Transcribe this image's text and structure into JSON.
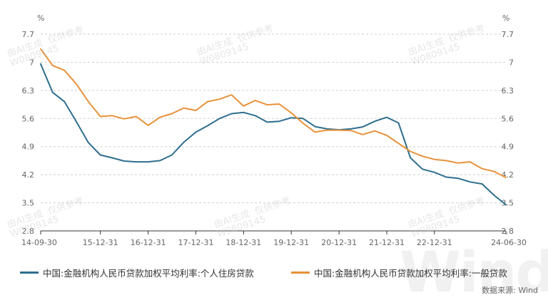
{
  "chart_data": {
    "type": "line",
    "y_unit_left": "%",
    "y_unit_right": "%",
    "ylim": [
      2.8,
      7.7
    ],
    "yticks": [
      "7.7",
      "7",
      "6.3",
      "5.6",
      "4.9",
      "4.2",
      "3.5",
      "2.8"
    ],
    "ytick_values": [
      7.7,
      7.0,
      6.3,
      5.6,
      4.9,
      4.2,
      3.5,
      2.8
    ],
    "xticks": [
      "14-09-30",
      "15-12-31",
      "16-12-31",
      "17-12-31",
      "18-12-31",
      "19-12-31",
      "20-12-31",
      "21-12-31",
      "22-12-31",
      "24-06-30"
    ],
    "grid": "horizontal-dashed",
    "legend_position": "bottom",
    "series": [
      {
        "name": "中国:金融机构人民币贷款加权平均利率:个人住房贷款",
        "color": "#2e6e8e",
        "x": [
          "14-09-30",
          "14-12-31",
          "15-03-31",
          "15-06-30",
          "15-09-30",
          "15-12-31",
          "16-03-31",
          "16-06-30",
          "16-09-30",
          "16-12-31",
          "17-03-31",
          "17-06-30",
          "17-09-30",
          "17-12-31",
          "18-03-31",
          "18-06-30",
          "18-09-30",
          "18-12-31",
          "19-03-31",
          "19-06-30",
          "19-09-30",
          "19-12-31",
          "20-03-31",
          "20-06-30",
          "20-09-30",
          "20-12-31",
          "21-03-31",
          "21-06-30",
          "21-09-30",
          "21-12-31",
          "22-03-31",
          "22-06-30",
          "22-09-30",
          "22-12-31",
          "23-03-31",
          "23-06-30",
          "23-09-30",
          "23-12-31",
          "24-03-31",
          "24-06-30"
        ],
        "values": [
          6.96,
          6.25,
          6.02,
          5.52,
          5.0,
          4.69,
          4.62,
          4.54,
          4.52,
          4.52,
          4.55,
          4.69,
          5.01,
          5.26,
          5.42,
          5.6,
          5.72,
          5.75,
          5.67,
          5.51,
          5.53,
          5.62,
          5.6,
          5.4,
          5.34,
          5.32,
          5.34,
          5.39,
          5.53,
          5.63,
          5.49,
          4.62,
          4.34,
          4.26,
          4.14,
          4.11,
          4.02,
          3.97,
          3.69,
          3.45
        ]
      },
      {
        "name": "中国:金融机构人民币贷款加权平均利率:一般贷款",
        "color": "#e8923a",
        "x": [
          "14-09-30",
          "14-12-31",
          "15-03-31",
          "15-06-30",
          "15-09-30",
          "15-12-31",
          "16-03-31",
          "16-06-30",
          "16-09-30",
          "16-12-31",
          "17-03-31",
          "17-06-30",
          "17-09-30",
          "17-12-31",
          "18-03-31",
          "18-06-30",
          "18-09-30",
          "18-12-31",
          "19-03-31",
          "19-06-30",
          "19-09-30",
          "19-12-31",
          "20-03-31",
          "20-06-30",
          "20-09-30",
          "20-12-31",
          "21-03-31",
          "21-06-30",
          "21-09-30",
          "21-12-31",
          "22-03-31",
          "22-06-30",
          "22-09-30",
          "22-12-31",
          "23-03-31",
          "23-06-30",
          "23-09-30",
          "23-12-31",
          "24-03-31",
          "24-06-30"
        ],
        "values": [
          7.33,
          6.92,
          6.8,
          6.46,
          6.02,
          5.65,
          5.67,
          5.59,
          5.65,
          5.43,
          5.63,
          5.72,
          5.86,
          5.8,
          6.02,
          6.08,
          6.19,
          5.91,
          6.05,
          5.94,
          5.96,
          5.74,
          5.48,
          5.26,
          5.31,
          5.31,
          5.3,
          5.2,
          5.29,
          5.18,
          4.98,
          4.78,
          4.66,
          4.58,
          4.55,
          4.49,
          4.52,
          4.35,
          4.28,
          4.13
        ]
      }
    ]
  },
  "legend": {
    "series1_label": "中国:金融机构人民币贷款加权平均利率:个人住房贷款",
    "series2_label": "中国:金融机构人民币贷款加权平均利率:一般贷款"
  },
  "source_text": "数据来源: Wind",
  "watermark": {
    "line1": "由AI生成  仅供参考",
    "line2": "W0809145",
    "logo": "Wind"
  }
}
